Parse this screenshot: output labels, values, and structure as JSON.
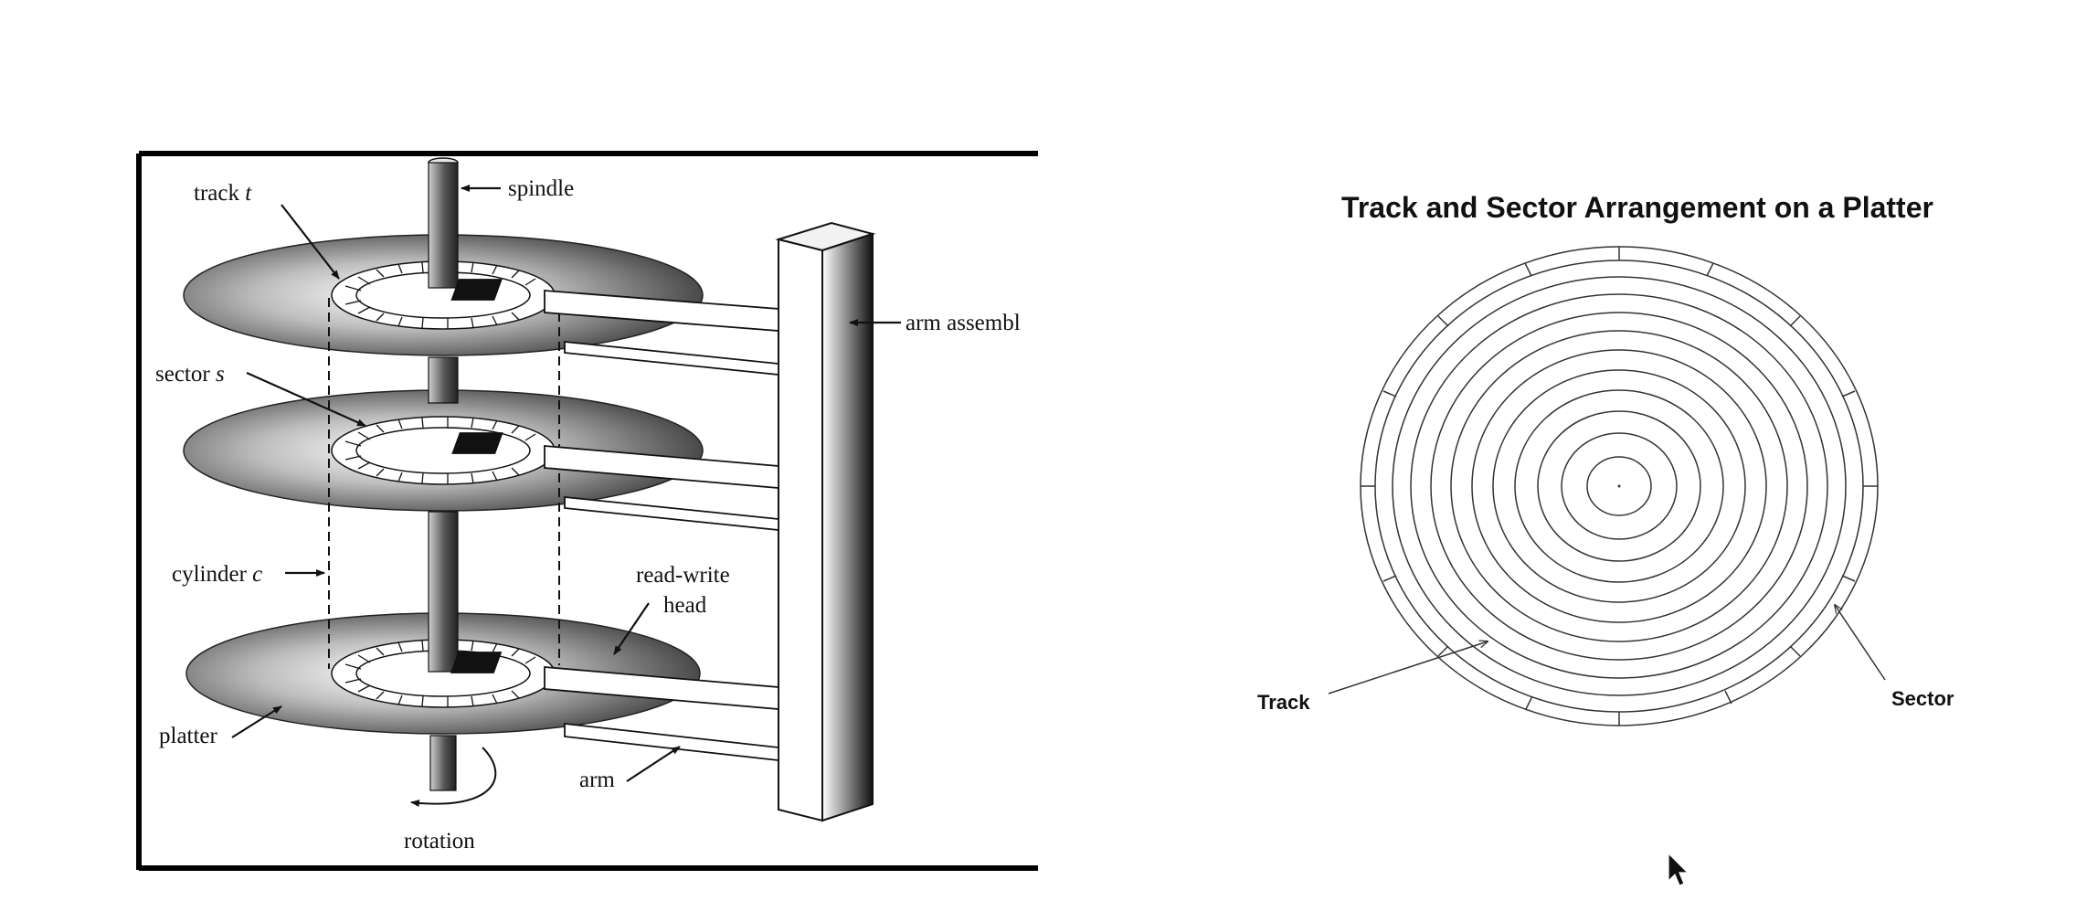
{
  "left_diagram": {
    "labels": {
      "track": "track",
      "track_var": "t",
      "spindle": "spindle",
      "arm_assembly": "arm assembl",
      "sector": "sector",
      "sector_var": "s",
      "cylinder": "cylinder",
      "cylinder_var": "c",
      "read_write_1": "read-write",
      "read_write_2": "head",
      "platter": "platter",
      "arm": "arm",
      "rotation": "rotation"
    }
  },
  "right_diagram": {
    "title": "Track and Sector Arrangement on a Platter",
    "labels": {
      "track": "Track",
      "sector": "Sector"
    }
  },
  "colors": {
    "ink": "#111111",
    "line": "#333333"
  },
  "icons": {
    "cursor": "mouse-pointer-icon"
  }
}
